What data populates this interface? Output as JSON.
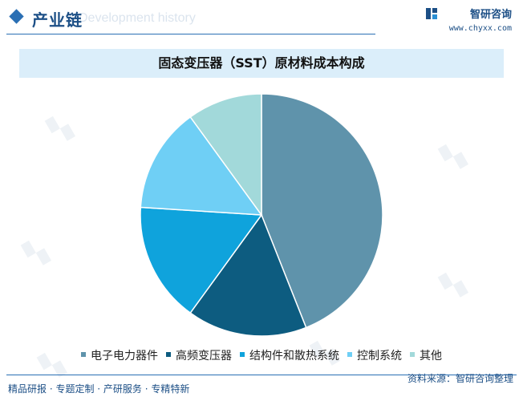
{
  "header": {
    "section_title": "产业链",
    "watermark_en": "Development history",
    "brand_name": "智研咨询",
    "brand_url": "www.chyxx.com"
  },
  "chart_data": {
    "type": "pie",
    "title": "固态变压器（SST）原材料成本构成",
    "slices": [
      {
        "label": "电子电力器件",
        "value": 44,
        "color": "#5f93ab"
      },
      {
        "label": "高频变压器",
        "value": 16,
        "color": "#0d5c80"
      },
      {
        "label": "结构件和散热系统",
        "value": 16,
        "color": "#0fa3dc"
      },
      {
        "label": "控制系统",
        "value": 14,
        "color": "#6fcff5"
      },
      {
        "label": "其他",
        "value": 10,
        "color": "#a2d9da"
      }
    ],
    "legend_position": "bottom",
    "start_angle": "12 o'clock",
    "direction": "clockwise"
  },
  "footer": {
    "left": "精品研报 · 专题定制 · 产研服务 · 专精特新",
    "source": "资料来源：智研咨询整理"
  },
  "colors": {
    "brand": "#1c4f86",
    "accent": "#2a6fb4",
    "title_bar": "#dbeefa"
  }
}
